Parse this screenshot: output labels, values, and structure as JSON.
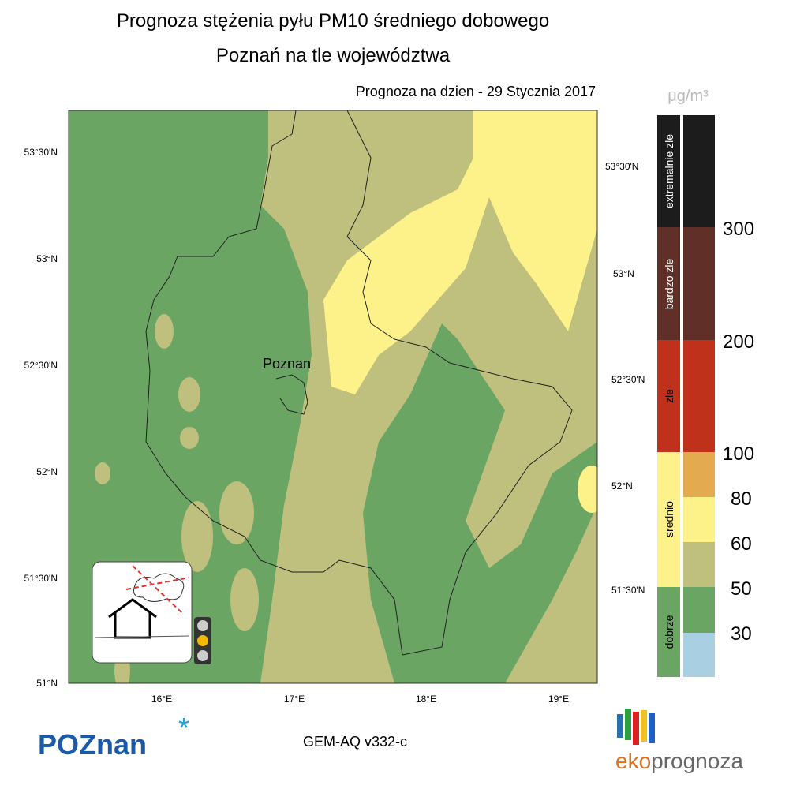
{
  "header": {
    "title": "Prognoza stężenia pyłu PM10 średniego dobowego",
    "subtitle": "Poznań na tle województwa",
    "date": "Prognoza na dzien -  29 Stycznia 2017"
  },
  "map": {
    "city": "Poznan",
    "lat_labels_left": [
      "53°30'N",
      "53°N",
      "52°30'N",
      "52°N",
      "51°30'N",
      "51°N"
    ],
    "lat_labels_right": [
      "53°30'N",
      "53°N",
      "52°30'N",
      "52°N",
      "51°30'N"
    ],
    "lon_labels": [
      "16°E",
      "17°E",
      "18°E",
      "19°E"
    ]
  },
  "legend": {
    "unit": "μg/m³",
    "categories": [
      "extremalnie zle",
      "bardzo zle",
      "zle",
      "srednio",
      "dobrze"
    ],
    "thresholds": [
      300,
      200,
      100,
      80,
      60,
      50,
      30
    ]
  },
  "footer": {
    "logo": "POZnan",
    "model": "GEM-AQ v332-c",
    "brand_prefix": "eko",
    "brand_suffix": "prognoza"
  }
}
